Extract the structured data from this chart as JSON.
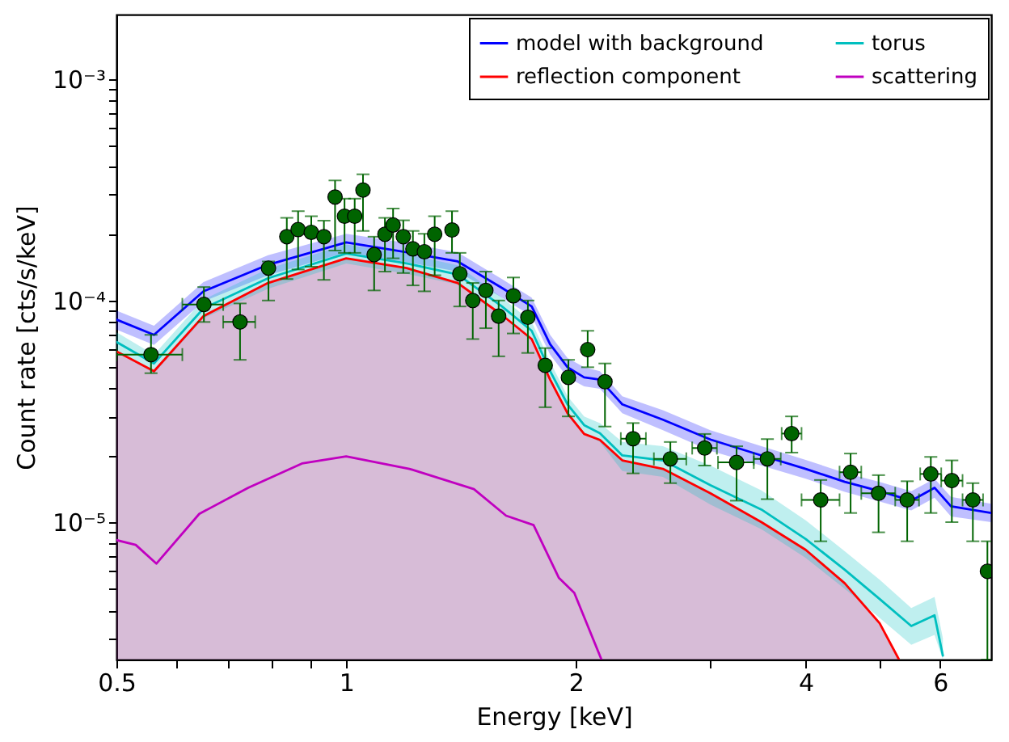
{
  "chart_data": {
    "type": "line",
    "xlabel": "Energy [keV]",
    "ylabel": "Count rate [cts/s/keV]",
    "log": "xy",
    "legend": "top right",
    "xlim": [
      0.5,
      7.0
    ],
    "ylim": [
      2.4e-06,
      0.00195
    ],
    "xticks": [
      0.5,
      {
        "value": 0.6,
        "label": null
      },
      {
        "value": 0.7,
        "label": null
      },
      {
        "value": 0.8,
        "label": null
      },
      {
        "value": 0.9,
        "label": null
      },
      1,
      2,
      {
        "value": 3,
        "label": null
      },
      4,
      {
        "value": 5,
        "label": null
      },
      6
    ],
    "yticks": [
      {
        "value": 3e-06,
        "label": null
      },
      {
        "value": 4e-06,
        "label": null
      },
      {
        "value": 5e-06,
        "label": null
      },
      {
        "value": 6e-06,
        "label": null
      },
      {
        "value": 7e-06,
        "label": null
      },
      {
        "value": 8e-06,
        "label": null
      },
      {
        "value": 9e-06,
        "label": null
      },
      {
        "value": 1e-05,
        "label": "10⁻⁵"
      },
      {
        "value": 2e-05,
        "label": null
      },
      {
        "value": 3e-05,
        "label": null
      },
      {
        "value": 4e-05,
        "label": null
      },
      {
        "value": 5e-05,
        "label": null
      },
      {
        "value": 6e-05,
        "label": null
      },
      {
        "value": 7e-05,
        "label": null
      },
      {
        "value": 8e-05,
        "label": null
      },
      {
        "value": 9e-05,
        "label": null
      },
      {
        "value": 0.0001,
        "label": "10⁻⁴"
      },
      {
        "value": 0.0002,
        "label": null
      },
      {
        "value": 0.0003,
        "label": null
      },
      {
        "value": 0.0004,
        "label": null
      },
      {
        "value": 0.0005,
        "label": null
      },
      {
        "value": 0.0006,
        "label": null
      },
      {
        "value": 0.0007,
        "label": null
      },
      {
        "value": 0.0008,
        "label": null
      },
      {
        "value": 0.0009,
        "label": null
      },
      {
        "value": 0.001,
        "label": "10⁻³"
      }
    ],
    "series": [
      {
        "name": "model with background",
        "color": "#0000ff",
        "x": [
          0.5,
          0.56,
          0.65,
          0.79,
          1.0,
          1.2,
          1.4,
          1.6,
          1.75,
          1.85,
          1.95,
          2.05,
          2.15,
          2.3,
          2.6,
          3.0,
          3.5,
          4.0,
          4.5,
          5.0,
          5.5,
          5.9,
          6.2,
          7.0
        ],
        "values": [
          8.2e-05,
          7e-05,
          0.00011,
          0.000145,
          0.000183,
          0.000165,
          0.00015,
          0.000114,
          9.4e-05,
          6.35e-05,
          5e-05,
          4.5e-05,
          4.4e-05,
          3.4e-05,
          2.9e-05,
          2.36e-05,
          2e-05,
          1.74e-05,
          1.52e-05,
          1.38e-05,
          1.25e-05,
          1.43e-05,
          1.18e-05,
          1.1e-05
        ],
        "lower": [
          7.4e-05,
          6.3e-05,
          9.9e-05,
          0.00013,
          0.000165,
          0.000149,
          0.000135,
          0.000103,
          8.5e-05,
          5.7e-05,
          4.5e-05,
          4.1e-05,
          4e-05,
          3.1e-05,
          2.6e-05,
          2.1e-05,
          1.8e-05,
          1.57e-05,
          1.37e-05,
          1.24e-05,
          1.13e-05,
          1.29e-05,
          1.06e-05,
          1e-05
        ],
        "upper": [
          9e-05,
          7.7e-05,
          0.000121,
          0.00016,
          0.0002,
          0.000182,
          0.000165,
          0.000125,
          0.000103,
          7e-05,
          5.5e-05,
          5e-05,
          4.8e-05,
          3.7e-05,
          3.2e-05,
          2.6e-05,
          2.2e-05,
          1.91e-05,
          1.67e-05,
          1.52e-05,
          1.38e-05,
          1.57e-05,
          1.3e-05,
          1.21e-05
        ]
      },
      {
        "name": "torus",
        "color": "#00bfbf",
        "x": [
          0.5,
          0.56,
          0.65,
          0.79,
          1.0,
          1.2,
          1.4,
          1.6,
          1.75,
          1.85,
          1.95,
          2.05,
          2.15,
          2.3,
          2.6,
          3.0,
          3.5,
          4.0,
          4.5,
          5.0,
          5.5,
          5.9,
          6.05
        ],
        "values": [
          6.5e-05,
          5.2e-05,
          9.2e-05,
          0.000126,
          0.000163,
          0.000147,
          0.000131,
          9.4e-05,
          7.3e-05,
          4.8e-05,
          3.4e-05,
          2.74e-05,
          2.52e-05,
          2e-05,
          1.9e-05,
          1.47e-05,
          1.14e-05,
          8.4e-06,
          6.1e-06,
          4.5e-06,
          3.4e-06,
          3.8e-06,
          2.5e-06
        ],
        "lower": [
          5.9e-05,
          4.7e-05,
          8.3e-05,
          0.000113,
          0.000147,
          0.000132,
          0.000118,
          8.5e-05,
          6.6e-05,
          4.3e-05,
          3.1e-05,
          2.5e-05,
          2.3e-05,
          1.7e-05,
          1.6e-05,
          1.2e-05,
          9.3e-06,
          6.9e-06,
          5e-06,
          3.7e-06,
          2.8e-06,
          3.1e-06,
          2.4e-06
        ],
        "upper": [
          7.2e-05,
          5.7e-05,
          0.000101,
          0.000139,
          0.000179,
          0.000162,
          0.000144,
          0.000103,
          8e-05,
          5.3e-05,
          3.7e-05,
          3e-05,
          2.8e-05,
          2.3e-05,
          2.2e-05,
          1.8e-05,
          1.39e-05,
          1.02e-05,
          7.4e-06,
          5.5e-06,
          4.1e-06,
          4.6e-06,
          3e-06
        ]
      },
      {
        "type": "area",
        "name": "reflection component",
        "color": "#ff0000",
        "x": [
          0.5,
          0.56,
          0.65,
          0.79,
          1.0,
          1.2,
          1.4,
          1.6,
          1.75,
          1.85,
          1.95,
          2.05,
          2.15,
          2.3,
          2.6,
          3.0,
          3.5,
          4.0,
          4.5,
          5.0,
          5.3
        ],
        "values": [
          5.9e-05,
          4.8e-05,
          8.5e-05,
          0.00012,
          0.000155,
          0.00014,
          0.00012,
          8.6e-05,
          6.7e-05,
          4.4e-05,
          3.1e-05,
          2.5e-05,
          2.35e-05,
          1.9e-05,
          1.74e-05,
          1.35e-05,
          1e-05,
          7.5e-06,
          5.3e-06,
          3.5e-06,
          2.4e-06
        ]
      },
      {
        "name": "scattering",
        "color": "#c000c0",
        "x": [
          0.5,
          0.53,
          0.564,
          0.642,
          0.744,
          0.875,
          1.0,
          1.21,
          1.47,
          1.62,
          1.76,
          1.9,
          1.99,
          2.16
        ],
        "values": [
          8.3e-06,
          7.9e-06,
          6.5e-06,
          1.09e-05,
          1.43e-05,
          1.84e-05,
          1.98e-05,
          1.74e-05,
          1.41e-05,
          1.07e-05,
          9.7e-06,
          5.6e-06,
          4.8e-06,
          2.4e-06
        ]
      },
      {
        "type": "scatter",
        "color": "#006400",
        "marker": "circle",
        "x": [
          0.555,
          0.651,
          0.726,
          0.791,
          0.836,
          0.865,
          0.9,
          0.935,
          0.967,
          0.995,
          1.026,
          1.052,
          1.088,
          1.124,
          1.152,
          1.188,
          1.223,
          1.266,
          1.306,
          1.376,
          1.409,
          1.465,
          1.524,
          1.584,
          1.656,
          1.73,
          1.823,
          1.955,
          2.072,
          2.183,
          2.376,
          2.659,
          2.949,
          3.247,
          3.563,
          3.834,
          4.185,
          4.58,
          4.983,
          5.433,
          5.834,
          6.216,
          6.623,
          6.92
        ],
        "values": [
          5.7e-05,
          9.6e-05,
          8e-05,
          0.00014,
          0.000194,
          0.000209,
          0.000203,
          0.000194,
          0.000293,
          0.00024,
          0.00024,
          0.000315,
          0.000161,
          0.000199,
          0.000219,
          0.000194,
          0.000171,
          0.000166,
          0.000199,
          0.000208,
          0.000132,
          0.0001,
          0.000111,
          8.5e-05,
          0.000105,
          8.4e-05,
          5.1e-05,
          4.5e-05,
          6e-05,
          4.3e-05,
          2.38e-05,
          1.93e-05,
          2.16e-05,
          1.86e-05,
          1.93e-05,
          2.51e-05,
          1.26e-05,
          1.68e-05,
          1.35e-05,
          1.26e-05,
          1.65e-05,
          1.54e-05,
          1.26e-05,
          6e-06
        ],
        "errors": [
          [
            4.7e-05,
            7e-05
          ],
          [
            8e-05,
            0.000115
          ],
          [
            5.4e-05,
            9.7e-05
          ],
          [
            0.0001,
            0.00015
          ],
          [
            0.000125,
            0.000236
          ],
          [
            0.000138,
            0.000253
          ],
          [
            0.000142,
            0.00024
          ],
          [
            0.000124,
            0.000229
          ],
          [
            0.000168,
            0.000348
          ],
          [
            0.000164,
            0.000288
          ],
          [
            0.000164,
            0.000288
          ],
          [
            0.000206,
            0.000371
          ],
          [
            0.000111,
            0.000194
          ],
          [
            0.000135,
            0.000236
          ],
          [
            0.000155,
            0.00026
          ],
          [
            0.000133,
            0.00023
          ],
          [
            0.000117,
            0.000206
          ],
          [
            0.00011,
            0.0002
          ],
          [
            0.00013,
            0.00024
          ],
          [
            0.000164,
            0.000253
          ],
          [
            9.4e-05,
            0.000164
          ],
          [
            6.7e-05,
            0.00012
          ],
          [
            7.5e-05,
            0.000135
          ],
          [
            5.6e-05,
            0.0001
          ],
          [
            7.1e-05,
            0.000127
          ],
          [
            5.8e-05,
            0.0001
          ],
          [
            3.3e-05,
            6.1e-05
          ],
          [
            3e-05,
            5.4e-05
          ],
          [
            5e-05,
            7.3e-05
          ],
          [
            2.7e-05,
            5.2e-05
          ],
          [
            1.66e-05,
            2.8e-05
          ],
          [
            1.5e-05,
            2.3e-05
          ],
          [
            1.8e-05,
            2.5e-05
          ],
          [
            1.25e-05,
            2.2e-05
          ],
          [
            1.27e-05,
            2.37e-05
          ],
          [
            2.06e-05,
            3e-05
          ],
          [
            8.2e-06,
            1.55e-05
          ],
          [
            1.1e-05,
            2.04e-05
          ],
          [
            9e-06,
            1.63e-05
          ],
          [
            8.2e-06,
            1.53e-05
          ],
          [
            1.1e-05,
            1.97e-05
          ],
          [
            1e-05,
            1.9e-05
          ],
          [
            8.2e-06,
            1.5e-05
          ],
          [
            2.4e-06,
            8.2e-06
          ]
        ],
        "xerrors": [
          [
            0.5,
            0.61
          ],
          [
            0.61,
            0.69
          ],
          [
            0.69,
            0.76
          ],
          null,
          null,
          null,
          null,
          null,
          null,
          null,
          null,
          null,
          null,
          null,
          null,
          null,
          null,
          null,
          null,
          null,
          null,
          null,
          null,
          null,
          null,
          null,
          null,
          null,
          null,
          null,
          [
            2.29,
            2.47
          ],
          [
            2.53,
            2.79
          ],
          [
            2.84,
            3.06
          ],
          [
            3.07,
            3.42
          ],
          [
            3.42,
            3.71
          ],
          [
            3.72,
            3.95
          ],
          [
            3.95,
            4.43
          ],
          [
            4.43,
            4.73
          ],
          [
            4.73,
            5.24
          ],
          [
            5.24,
            5.63
          ],
          [
            5.65,
            6.02
          ],
          [
            6.02,
            6.42
          ],
          [
            6.42,
            6.83
          ],
          null
        ]
      }
    ]
  }
}
